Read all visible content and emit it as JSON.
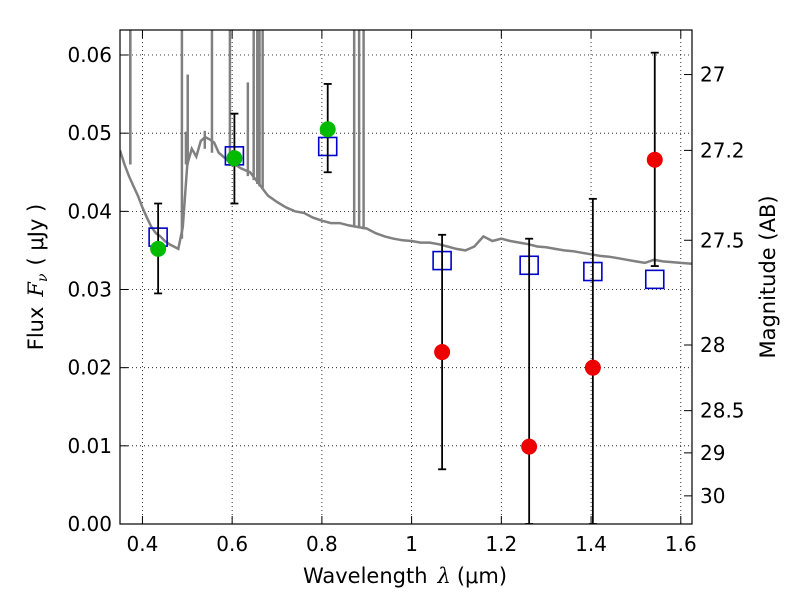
{
  "chart_data": {
    "type": "scatter",
    "xlabel_text": "Wavelength",
    "xlabel_symbol": "λ",
    "xlabel_unit": "(μm)",
    "ylabel_text": "Flux",
    "ylabel_symbol": "F",
    "ylabel_sub": "ν",
    "ylabel_unit": "( μJy )",
    "ylabel_right": "Magnitude (AB)",
    "xlim": [
      0.35,
      1.625
    ],
    "ylim": [
      0.0,
      0.0632
    ],
    "grid": true,
    "x_ticks": [
      0.4,
      0.6,
      0.8,
      1.0,
      1.2,
      1.4,
      1.6
    ],
    "x_tick_labels": [
      "0.4",
      "0.6",
      "0.8",
      "1",
      "1.2",
      "1.4",
      "1.6"
    ],
    "y_ticks": [
      0.0,
      0.01,
      0.02,
      0.03,
      0.04,
      0.05,
      0.06
    ],
    "y_tick_labels": [
      "0.00",
      "0.01",
      "0.02",
      "0.03",
      "0.04",
      "0.05",
      "0.06"
    ],
    "right_ticks": [
      {
        "label": "27",
        "flux": 0.0575
      },
      {
        "label": "27.2",
        "flux": 0.0478
      },
      {
        "label": "27.5",
        "flux": 0.0363
      },
      {
        "label": "28",
        "flux": 0.0229
      },
      {
        "label": "28.5",
        "flux": 0.0145
      },
      {
        "label": "29",
        "flux": 0.0091
      },
      {
        "label": "30",
        "flux": 0.0036
      }
    ],
    "colors": {
      "model": "#808080",
      "model_photometry": "#0000cc",
      "detections": "#00bb00",
      "upper_limits": "#ee0000",
      "errorbars": "#000000"
    },
    "series": [
      {
        "kind": "line",
        "points": [
          [
            0.35,
            0.0478
          ],
          [
            0.36,
            0.046
          ],
          [
            0.37,
            0.0445
          ],
          [
            0.38,
            0.0432
          ],
          [
            0.39,
            0.042
          ],
          [
            0.4,
            0.0405
          ],
          [
            0.41,
            0.0392
          ],
          [
            0.42,
            0.038
          ],
          [
            0.43,
            0.0372
          ],
          [
            0.44,
            0.0368
          ],
          [
            0.45,
            0.0362
          ],
          [
            0.46,
            0.0358
          ],
          [
            0.47,
            0.0355
          ],
          [
            0.48,
            0.0352
          ],
          [
            0.49,
            0.038
          ],
          [
            0.5,
            0.046
          ],
          [
            0.51,
            0.048
          ],
          [
            0.52,
            0.047
          ],
          [
            0.53,
            0.049
          ],
          [
            0.54,
            0.0495
          ],
          [
            0.55,
            0.0492
          ],
          [
            0.56,
            0.0488
          ],
          [
            0.57,
            0.0475
          ],
          [
            0.58,
            0.047
          ],
          [
            0.59,
            0.0465
          ],
          [
            0.6,
            0.0462
          ],
          [
            0.62,
            0.0455
          ],
          [
            0.64,
            0.045
          ],
          [
            0.66,
            0.0435
          ],
          [
            0.68,
            0.042
          ],
          [
            0.7,
            0.0412
          ],
          [
            0.72,
            0.0405
          ],
          [
            0.74,
            0.04
          ],
          [
            0.76,
            0.0398
          ],
          [
            0.78,
            0.0392
          ],
          [
            0.8,
            0.0388
          ],
          [
            0.82,
            0.0385
          ],
          [
            0.84,
            0.0385
          ],
          [
            0.86,
            0.0382
          ],
          [
            0.88,
            0.038
          ],
          [
            0.9,
            0.0378
          ],
          [
            0.92,
            0.0372
          ],
          [
            0.94,
            0.0368
          ],
          [
            0.96,
            0.0365
          ],
          [
            0.98,
            0.0363
          ],
          [
            1.0,
            0.0362
          ],
          [
            1.02,
            0.036
          ],
          [
            1.04,
            0.036
          ],
          [
            1.06,
            0.0358
          ],
          [
            1.08,
            0.0355
          ],
          [
            1.1,
            0.0352
          ],
          [
            1.12,
            0.035
          ],
          [
            1.14,
            0.0355
          ],
          [
            1.16,
            0.0368
          ],
          [
            1.18,
            0.0362
          ],
          [
            1.2,
            0.0365
          ],
          [
            1.22,
            0.0362
          ],
          [
            1.24,
            0.036
          ],
          [
            1.26,
            0.0358
          ],
          [
            1.28,
            0.0355
          ],
          [
            1.3,
            0.0354
          ],
          [
            1.32,
            0.0352
          ],
          [
            1.34,
            0.035
          ],
          [
            1.36,
            0.0349
          ],
          [
            1.38,
            0.0347
          ],
          [
            1.4,
            0.0345
          ],
          [
            1.42,
            0.0343
          ],
          [
            1.44,
            0.0342
          ],
          [
            1.46,
            0.034
          ],
          [
            1.48,
            0.0338
          ],
          [
            1.5,
            0.0336
          ],
          [
            1.52,
            0.0334
          ],
          [
            1.54,
            0.0338
          ],
          [
            1.56,
            0.0336
          ],
          [
            1.58,
            0.0335
          ],
          [
            1.6,
            0.0334
          ],
          [
            1.625,
            0.0333
          ]
        ]
      },
      {
        "kind": "emission_lines",
        "lines": [
          {
            "x": 0.373,
            "y0": 0.046,
            "y1": 0.0632
          },
          {
            "x": 0.373,
            "y0": 0.046,
            "y1": 0.0632
          },
          {
            "x": 0.488,
            "y0": 0.0365,
            "y1": 0.0632
          },
          {
            "x": 0.497,
            "y0": 0.046,
            "y1": 0.0502
          },
          {
            "x": 0.501,
            "y0": 0.046,
            "y1": 0.0575
          },
          {
            "x": 0.539,
            "y0": 0.048,
            "y1": 0.0503
          },
          {
            "x": 0.555,
            "y0": 0.0475,
            "y1": 0.0632
          },
          {
            "x": 0.595,
            "y0": 0.0458,
            "y1": 0.0632
          },
          {
            "x": 0.635,
            "y0": 0.0445,
            "y1": 0.0565
          },
          {
            "x": 0.648,
            "y0": 0.044,
            "y1": 0.0632
          },
          {
            "x": 0.656,
            "y0": 0.0435,
            "y1": 0.0632
          },
          {
            "x": 0.661,
            "y0": 0.0432,
            "y1": 0.0632
          },
          {
            "x": 0.668,
            "y0": 0.043,
            "y1": 0.0632
          },
          {
            "x": 0.872,
            "y0": 0.038,
            "y1": 0.0632
          },
          {
            "x": 0.883,
            "y0": 0.0378,
            "y1": 0.0632
          },
          {
            "x": 0.893,
            "y0": 0.0377,
            "y1": 0.0632
          }
        ]
      },
      {
        "kind": "open_squares",
        "points": [
          [
            0.435,
            0.0367
          ],
          [
            0.605,
            0.0471
          ],
          [
            0.813,
            0.0483
          ],
          [
            1.068,
            0.0337
          ],
          [
            1.262,
            0.0331
          ],
          [
            1.404,
            0.0323
          ],
          [
            1.542,
            0.0313
          ]
        ]
      },
      {
        "kind": "green_points",
        "points": [
          {
            "x": 0.435,
            "y": 0.0352,
            "lo": 0.0295,
            "hi": 0.041
          },
          {
            "x": 0.605,
            "y": 0.0468,
            "lo": 0.041,
            "hi": 0.0525
          },
          {
            "x": 0.813,
            "y": 0.0505,
            "lo": 0.045,
            "hi": 0.0563
          }
        ]
      },
      {
        "kind": "red_points",
        "points": [
          {
            "x": 1.068,
            "y": 0.022,
            "lo": 0.007,
            "hi": 0.037
          },
          {
            "x": 1.262,
            "y": 0.0099,
            "lo": 0.0,
            "hi": 0.0365
          },
          {
            "x": 1.404,
            "y": 0.02,
            "lo": 0.0,
            "hi": 0.0416
          },
          {
            "x": 1.542,
            "y": 0.0466,
            "lo": 0.033,
            "hi": 0.0603
          }
        ]
      }
    ]
  }
}
